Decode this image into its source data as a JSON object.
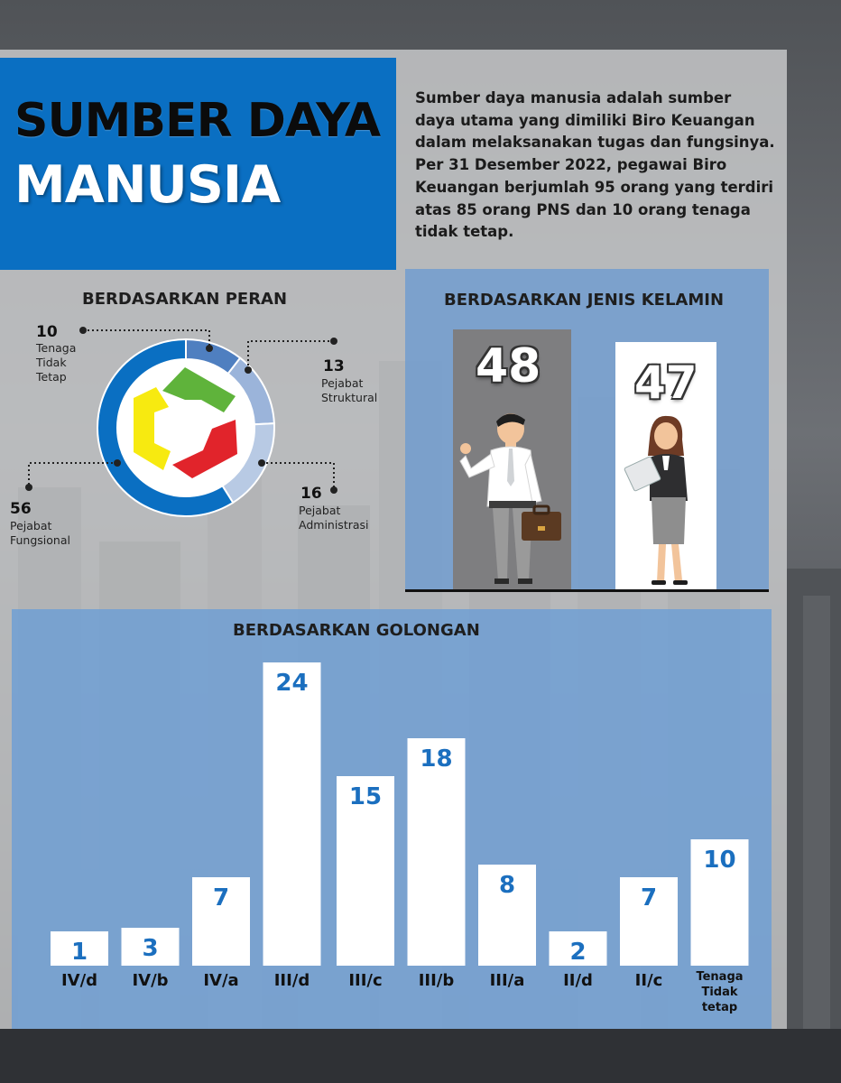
{
  "header": {
    "title_line1": "SUMBER DAYA",
    "title_line2": "MANUSIA",
    "intro": "Sumber daya manusia adalah sumber daya utama yang dimiliki Biro Keuangan dalam melaksanakan tugas dan fungsinya. Per 31 Desember 2022, pegawai Biro Keuangan berjumlah 95 orang yang terdiri atas 85 orang PNS dan 10 orang tenaga tidak tetap."
  },
  "peran": {
    "title": "BERDASARKAN PERAN",
    "items": [
      {
        "value": "10",
        "label": "Tenaga\nTidak\nTetap"
      },
      {
        "value": "13",
        "label": "Pejabat\nStruktural"
      },
      {
        "value": "16",
        "label": "Pejabat\nAdministrasi"
      },
      {
        "value": "56",
        "label": "Pejabat\nFungsional"
      }
    ]
  },
  "kelamin": {
    "title": "BERDASARKAN JENIS KELAMIN",
    "male": "48",
    "female": "47"
  },
  "golongan": {
    "title": "BERDASARKAN GOLONGAN"
  },
  "colors": {
    "accent_blue": "#0a6fc2",
    "donut_dark": "#0a6fc2",
    "donut_mid": "#4f7fc0",
    "donut_light": "#9bb4da",
    "donut_lighter": "#b8cae4",
    "logo_green": "#5fb33b",
    "logo_red": "#e1242b",
    "logo_yellow": "#f7ea10",
    "bar_value": "#1b6fbf"
  },
  "chart_data": [
    {
      "type": "pie",
      "title": "BERDASARKAN PERAN",
      "categories": [
        "Tenaga Tidak Tetap",
        "Pejabat Struktural",
        "Pejabat Administrasi",
        "Pejabat Fungsional"
      ],
      "values": [
        10,
        13,
        16,
        56
      ]
    },
    {
      "type": "bar",
      "title": "BERDASARKAN JENIS KELAMIN",
      "values": [
        48,
        47
      ]
    },
    {
      "type": "bar",
      "title": "BERDASARKAN GOLONGAN",
      "categories": [
        "IV/d",
        "IV/b",
        "IV/a",
        "III/d",
        "III/c",
        "III/b",
        "III/a",
        "II/d",
        "II/c",
        "Tenaga Tidak tetap"
      ],
      "values": [
        1,
        3,
        7,
        24,
        15,
        18,
        8,
        2,
        7,
        10
      ],
      "ylim": [
        0,
        24
      ]
    }
  ]
}
